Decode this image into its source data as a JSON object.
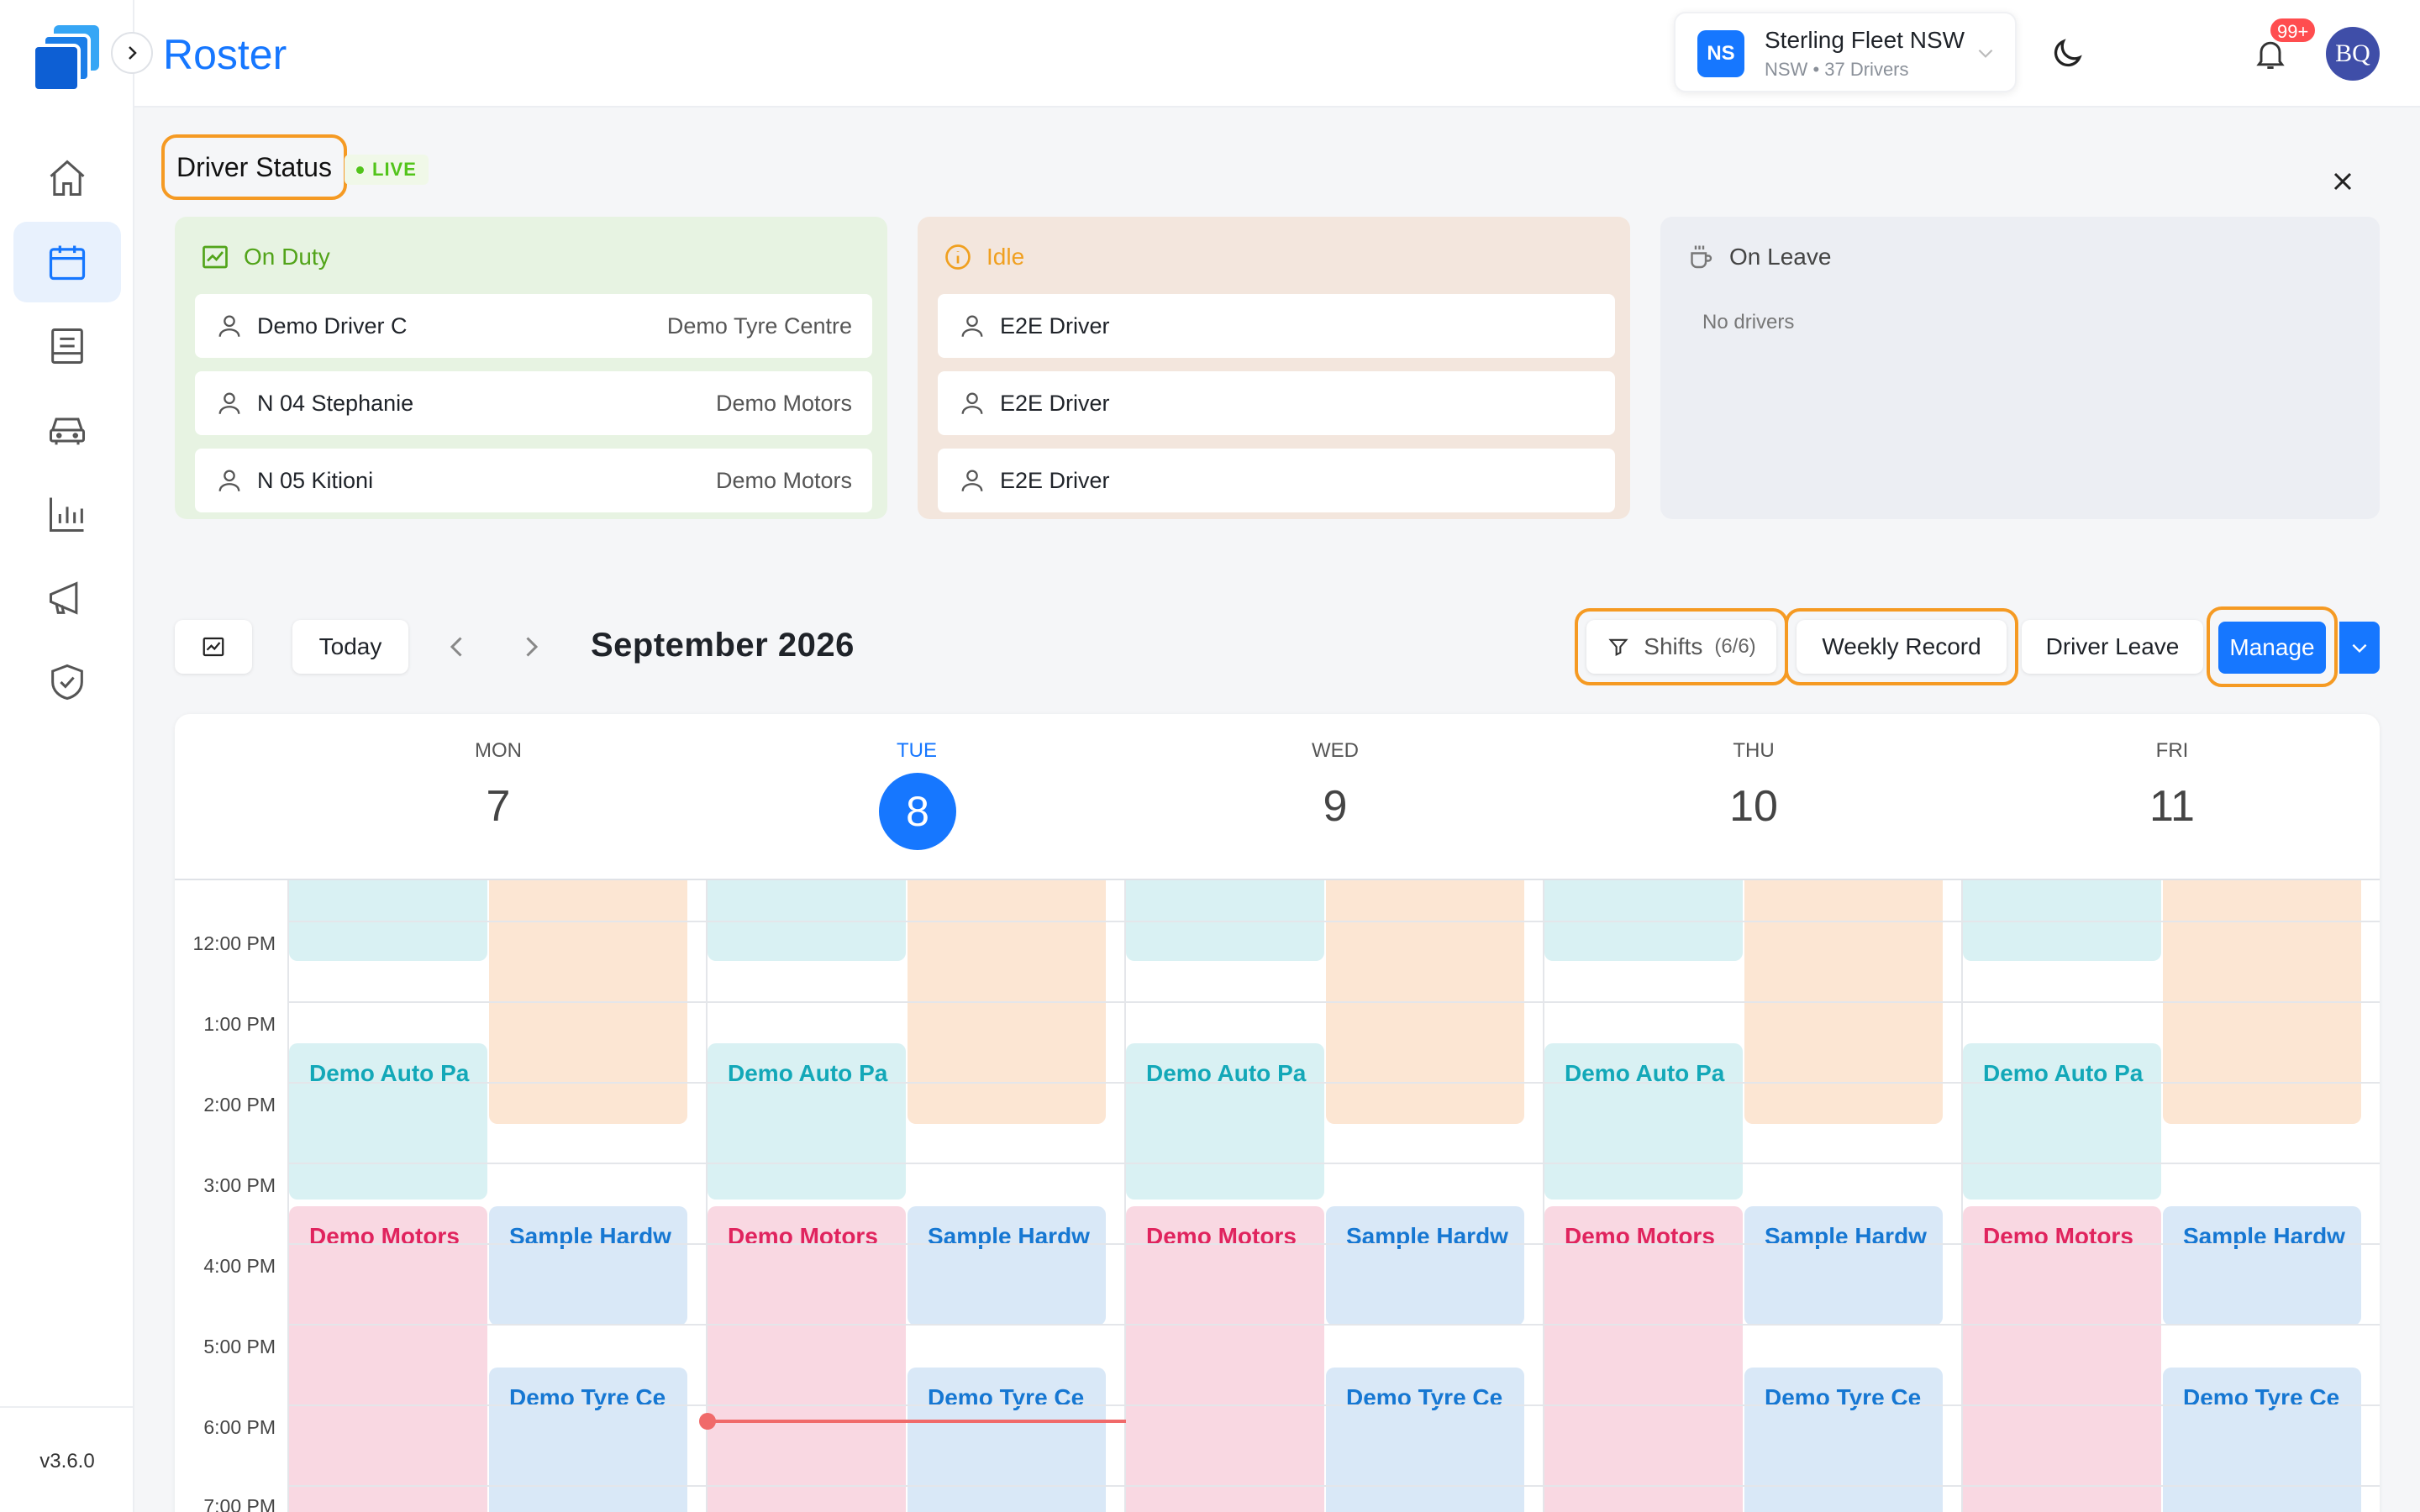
{
  "app": {
    "title": "Roster",
    "version": "v3.6.0"
  },
  "fleet": {
    "initials": "NS",
    "name": "Sterling Fleet NSW",
    "subtitle": "NSW • 37 Drivers"
  },
  "notifications": {
    "badge": "99+"
  },
  "user": {
    "initials": "BQ"
  },
  "driver_status": {
    "title": "Driver Status",
    "live_label": "LIVE",
    "columns": [
      {
        "label": "On Duty",
        "drivers": [
          {
            "name": "Demo Driver C",
            "org": "Demo Tyre Centre"
          },
          {
            "name": "N 04 Stephanie",
            "org": "Demo Motors"
          },
          {
            "name": "N 05 Kitioni",
            "org": "Demo Motors"
          }
        ]
      },
      {
        "label": "Idle",
        "drivers": [
          {
            "name": "E2E Driver"
          },
          {
            "name": "E2E Driver"
          },
          {
            "name": "E2E Driver"
          }
        ]
      },
      {
        "label": "On Leave",
        "empty_text": "No drivers"
      }
    ]
  },
  "toolbar": {
    "today_label": "Today",
    "month_label": "September 2026",
    "shifts_label": "Shifts",
    "shifts_count": "(6/6)",
    "weekly_record_label": "Weekly Record",
    "driver_leave_label": "Driver Leave",
    "manage_label": "Manage"
  },
  "calendar": {
    "days": [
      {
        "name": "MON",
        "num": "7"
      },
      {
        "name": "TUE",
        "num": "8",
        "today": true
      },
      {
        "name": "WED",
        "num": "9"
      },
      {
        "name": "THU",
        "num": "10"
      },
      {
        "name": "FRI",
        "num": "11"
      }
    ],
    "times": [
      "12:00 PM",
      "1:00 PM",
      "2:00 PM",
      "3:00 PM",
      "4:00 PM",
      "5:00 PM",
      "6:00 PM",
      "7:00 PM"
    ],
    "event_labels": {
      "teal": "Demo Auto Pa",
      "pink": "Demo Motors",
      "blue_top": "Sample Hardw",
      "blue_bottom": "Demo Tyre Ce"
    }
  },
  "colors": {
    "accent": "#1677ff",
    "highlight": "#f59a23",
    "live": "#52c41a",
    "now_line": "#f06a6a"
  },
  "icons": [
    "home-icon",
    "calendar-icon",
    "report-icon",
    "car-icon",
    "chart-icon",
    "megaphone-icon",
    "shield-check-icon"
  ]
}
